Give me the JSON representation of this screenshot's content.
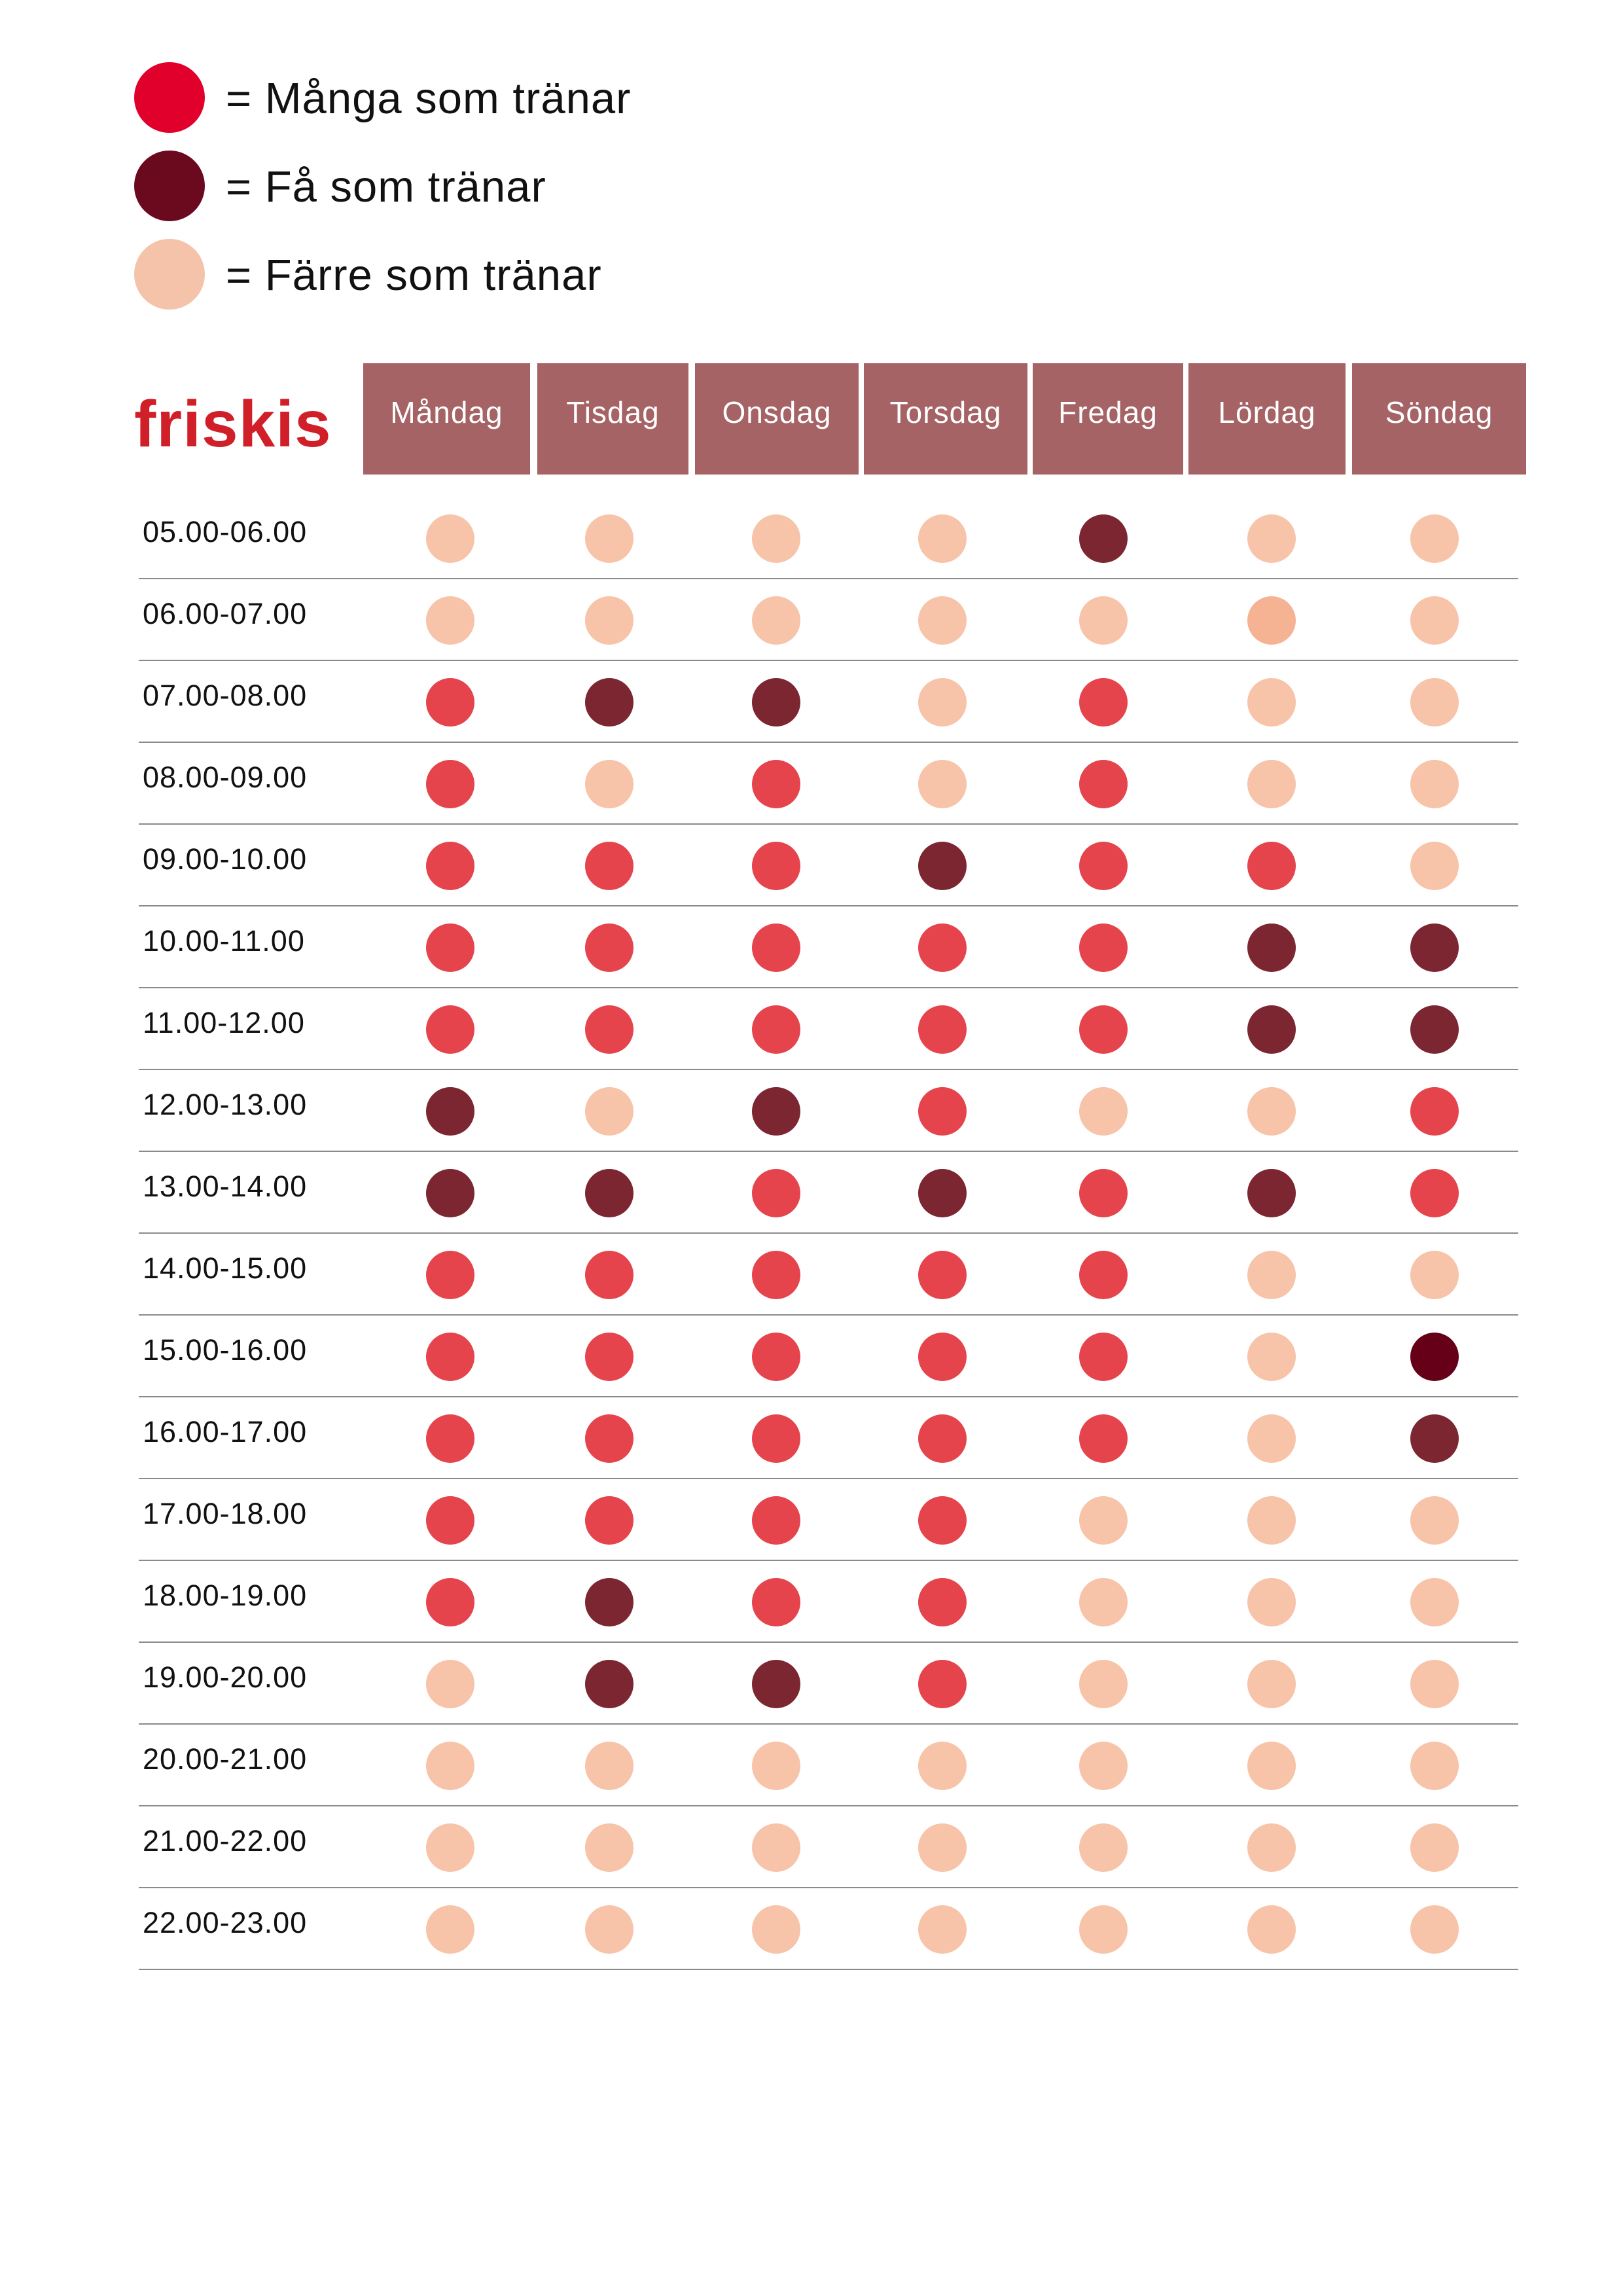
{
  "legend": [
    {
      "color": "#e0002b",
      "label": "= Många som tränar"
    },
    {
      "color": "#6b0a1e",
      "label": "= Få som tränar"
    },
    {
      "color": "#f5c3a9",
      "label": "= Färre som tränar"
    }
  ],
  "brand": "friskis",
  "colors": {
    "header_bg": "#a56366",
    "brand": "#d11f2a",
    "dot_map": {
      "M": "#e5444c",
      "F": "#7c2631",
      "R": "#f7c3a9",
      "R2": "#f5b394",
      "D": "#660018"
    }
  },
  "chart_data": {
    "type": "table",
    "columns": [
      "Måndag",
      "Tisdag",
      "Onsdag",
      "Torsdag",
      "Fredag",
      "Lördag",
      "Söndag"
    ],
    "rows": [
      {
        "time": "05.00-06.00",
        "values": [
          "R",
          "R",
          "R",
          "R",
          "F",
          "R",
          "R"
        ]
      },
      {
        "time": "06.00-07.00",
        "values": [
          "R",
          "R",
          "R",
          "R",
          "R",
          "R2",
          "R"
        ]
      },
      {
        "time": "07.00-08.00",
        "values": [
          "M",
          "F",
          "F",
          "R",
          "M",
          "R",
          "R"
        ]
      },
      {
        "time": "08.00-09.00",
        "values": [
          "M",
          "R",
          "M",
          "R",
          "M",
          "R",
          "R"
        ]
      },
      {
        "time": "09.00-10.00",
        "values": [
          "M",
          "M",
          "M",
          "F",
          "M",
          "M",
          "R"
        ]
      },
      {
        "time": "10.00-11.00",
        "values": [
          "M",
          "M",
          "M",
          "M",
          "M",
          "F",
          "F"
        ]
      },
      {
        "time": "11.00-12.00",
        "values": [
          "M",
          "M",
          "M",
          "M",
          "M",
          "F",
          "F"
        ]
      },
      {
        "time": "12.00-13.00",
        "values": [
          "F",
          "R",
          "F",
          "M",
          "R",
          "R",
          "M"
        ]
      },
      {
        "time": "13.00-14.00",
        "values": [
          "F",
          "F",
          "M",
          "F",
          "M",
          "F",
          "M"
        ]
      },
      {
        "time": "14.00-15.00",
        "values": [
          "M",
          "M",
          "M",
          "M",
          "M",
          "R",
          "R"
        ]
      },
      {
        "time": "15.00-16.00",
        "values": [
          "M",
          "M",
          "M",
          "M",
          "M",
          "R",
          "D"
        ]
      },
      {
        "time": "16.00-17.00",
        "values": [
          "M",
          "M",
          "M",
          "M",
          "M",
          "R",
          "F"
        ]
      },
      {
        "time": "17.00-18.00",
        "values": [
          "M",
          "M",
          "M",
          "M",
          "R",
          "R",
          "R"
        ]
      },
      {
        "time": "18.00-19.00",
        "values": [
          "M",
          "F",
          "M",
          "M",
          "R",
          "R",
          "R"
        ]
      },
      {
        "time": "19.00-20.00",
        "values": [
          "R",
          "F",
          "F",
          "M",
          "R",
          "R",
          "R"
        ]
      },
      {
        "time": "20.00-21.00",
        "values": [
          "R",
          "R",
          "R",
          "R",
          "R",
          "R",
          "R"
        ]
      },
      {
        "time": "21.00-22.00",
        "values": [
          "R",
          "R",
          "R",
          "R",
          "R",
          "R",
          "R"
        ]
      },
      {
        "time": "22.00-23.00",
        "values": [
          "R",
          "R",
          "R",
          "R",
          "R",
          "R",
          "R"
        ]
      }
    ]
  }
}
